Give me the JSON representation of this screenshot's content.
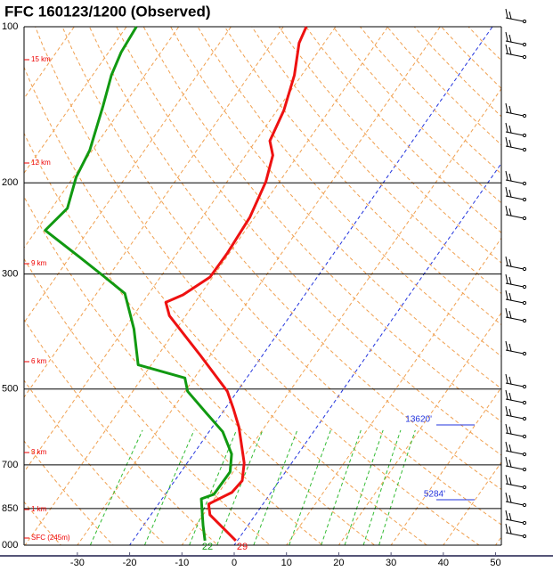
{
  "chart_data": {
    "type": "skewt",
    "title": "FFC   160123/1200  (Observed)",
    "ylim": [
      1000,
      100
    ],
    "log_y": true,
    "yticks": [
      100,
      200,
      300,
      500,
      700,
      850,
      {
        "value": 1000,
        "label": "000"
      }
    ],
    "xlim": [
      -40.2,
      51.1
    ],
    "xticks": [
      -30,
      -20,
      -10,
      0,
      10,
      20,
      30,
      40,
      50
    ],
    "height_labels": [
      "15 km",
      "12 km",
      "9 km",
      "6 km",
      "3 km",
      "1 km",
      "SFC (245m)"
    ],
    "surface_labels": [
      {
        "text": "22",
        "color": "#119911"
      },
      {
        "text": "29",
        "color": "#ee1111"
      }
    ],
    "annotations": [
      "13620'",
      "5284'"
    ],
    "series": [
      {
        "color": "#ee1111",
        "pressure": [
          980,
          874,
          833,
          791,
          751,
          694,
          592,
          547,
          505,
          431,
          361,
          340,
          329,
          304,
          273,
          233,
          199,
          177,
          166,
          145,
          124,
          107.5,
          100
        ],
        "values": [
          -0.3,
          -8.7,
          -10.4,
          -7.5,
          -7.1,
          -9.1,
          -14.9,
          -18.3,
          -21.9,
          -31.8,
          -43.1,
          -45.6,
          -43.3,
          -40.5,
          -40.4,
          -40.9,
          -42.6,
          -44.8,
          -47.3,
          -48.7,
          -51.4,
          -54.8,
          -55.6
        ]
      },
      {
        "color": "#119911",
        "pressure": [
          980,
          916,
          814,
          798,
          722,
          667,
          604,
          558,
          505,
          476,
          449,
          383,
          327,
          302,
          279,
          247,
          224,
          195,
          173,
          142,
          124,
          112,
          100
        ],
        "values": [
          -6.2,
          -8.6,
          -12.5,
          -10.7,
          -10.6,
          -12.7,
          -17.4,
          -22.8,
          -29.5,
          -31.8,
          -42.5,
          -48.1,
          -54.6,
          -61.2,
          -67.9,
          -78.3,
          -77.0,
          -79.5,
          -80.5,
          -83.9,
          -86.4,
          -87.6,
          -88.1
        ]
      }
    ]
  }
}
